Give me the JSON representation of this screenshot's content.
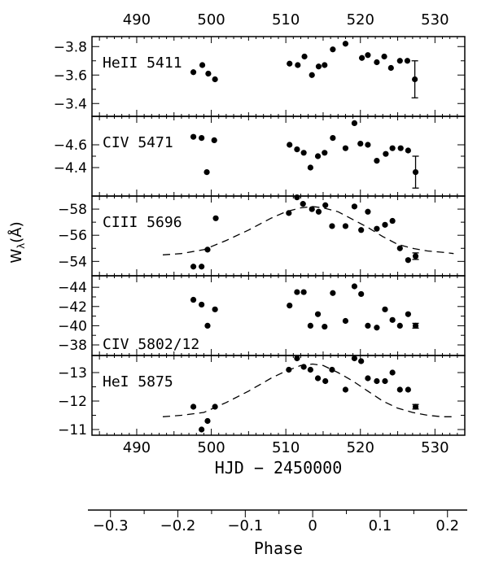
{
  "chart_data": {
    "type": "scatter",
    "xaxis": {
      "label": "HJD − 2450000",
      "range": [
        484,
        534
      ],
      "ticks": [
        490,
        500,
        510,
        520,
        530
      ],
      "tick_labels": [
        "490",
        "500",
        "510",
        "520",
        "530"
      ]
    },
    "phase_axis": {
      "label": "Phase",
      "ticks": [
        -0.3,
        -0.2,
        -0.1,
        0,
        0.1,
        0.2
      ],
      "tick_labels": [
        "−0.3",
        "−0.2",
        "−0.1",
        "0",
        "0.1",
        "0.2"
      ],
      "zero_hjd": 513.6,
      "hjd_per_phase": 90.4
    },
    "ylabel": "Wλ(Å)",
    "ylabel_main": "W",
    "ylabel_sub": "λ",
    "ylabel_unit": "(Å)",
    "panels": [
      {
        "label": "HeII 5411",
        "ylim": [
          -3.87,
          -3.31
        ],
        "inverted": true,
        "ticks": [
          -3.8,
          -3.6,
          -3.4
        ],
        "tick_labels": [
          "−3.8",
          "−3.6",
          "−3.4"
        ],
        "points": [
          [
            497.6,
            -3.62
          ],
          [
            498.8,
            -3.67
          ],
          [
            499.6,
            -3.61
          ],
          [
            500.5,
            -3.57
          ],
          [
            510.5,
            -3.68
          ],
          [
            511.6,
            -3.67
          ],
          [
            512.5,
            -3.73
          ],
          [
            513.5,
            -3.6
          ],
          [
            514.4,
            -3.66
          ],
          [
            515.2,
            -3.67
          ],
          [
            516.3,
            -3.78
          ],
          [
            518.0,
            -3.82
          ],
          [
            520.2,
            -3.72
          ],
          [
            521.0,
            -3.74
          ],
          [
            522.2,
            -3.69
          ],
          [
            523.2,
            -3.73
          ],
          [
            524.1,
            -3.65
          ],
          [
            525.3,
            -3.7
          ],
          [
            526.3,
            -3.7
          ],
          [
            527.3,
            -3.57
          ]
        ],
        "errorbar": {
          "x": 527.3,
          "y": -3.57,
          "err": 0.13
        },
        "curve": []
      },
      {
        "label": "CIV 5471",
        "ylim": [
          -4.85,
          -4.15
        ],
        "inverted": true,
        "ticks": [
          -4.6,
          -4.4
        ],
        "tick_labels": [
          "−4.6",
          "−4.4"
        ],
        "points": [
          [
            497.6,
            -4.67
          ],
          [
            498.7,
            -4.66
          ],
          [
            499.4,
            -4.36
          ],
          [
            500.4,
            -4.64
          ],
          [
            510.5,
            -4.6
          ],
          [
            511.5,
            -4.56
          ],
          [
            512.4,
            -4.53
          ],
          [
            513.3,
            -4.4
          ],
          [
            514.3,
            -4.5
          ],
          [
            515.2,
            -4.53
          ],
          [
            516.3,
            -4.66
          ],
          [
            518.0,
            -4.57
          ],
          [
            519.2,
            -4.79
          ],
          [
            520.0,
            -4.61
          ],
          [
            521.0,
            -4.6
          ],
          [
            522.2,
            -4.46
          ],
          [
            523.4,
            -4.52
          ],
          [
            524.3,
            -4.57
          ],
          [
            525.4,
            -4.57
          ],
          [
            526.4,
            -4.55
          ],
          [
            527.4,
            -4.36
          ]
        ],
        "errorbar": {
          "x": 527.4,
          "y": -4.36,
          "err": 0.14
        },
        "curve": []
      },
      {
        "label": "CIII 5696",
        "ylim": [
          -59.0,
          -52.9
        ],
        "inverted": true,
        "ticks": [
          -58,
          -56,
          -54
        ],
        "tick_labels": [
          "−58",
          "−56",
          "−54"
        ],
        "points": [
          [
            497.6,
            -53.6
          ],
          [
            498.7,
            -53.6
          ],
          [
            499.5,
            -54.9
          ],
          [
            500.6,
            -57.3
          ],
          [
            510.4,
            -57.7
          ],
          [
            511.5,
            -58.9
          ],
          [
            512.3,
            -58.4
          ],
          [
            513.5,
            -58.0
          ],
          [
            514.4,
            -57.8
          ],
          [
            515.3,
            -58.3
          ],
          [
            516.2,
            -56.7
          ],
          [
            518.0,
            -56.7
          ],
          [
            519.2,
            -58.2
          ],
          [
            520.1,
            -56.4
          ],
          [
            521.0,
            -57.8
          ],
          [
            522.2,
            -56.5
          ],
          [
            523.3,
            -56.8
          ],
          [
            524.3,
            -57.1
          ],
          [
            525.3,
            -55.0
          ],
          [
            526.4,
            -54.1
          ],
          [
            527.4,
            -54.4
          ]
        ],
        "errorbar": {
          "x": 527.4,
          "y": -54.4,
          "err": 0.25
        },
        "curve": [
          [
            493.5,
            -54.5
          ],
          [
            496,
            -54.6
          ],
          [
            499,
            -54.9
          ],
          [
            502,
            -55.6
          ],
          [
            505,
            -56.4
          ],
          [
            508,
            -57.3
          ],
          [
            510,
            -57.8
          ],
          [
            512,
            -58.1
          ],
          [
            513.6,
            -58.2
          ],
          [
            515,
            -58.1
          ],
          [
            517,
            -57.8
          ],
          [
            519,
            -57.2
          ],
          [
            521,
            -56.6
          ],
          [
            523,
            -55.9
          ],
          [
            525,
            -55.3
          ],
          [
            527,
            -55.0
          ],
          [
            529,
            -54.8
          ],
          [
            531,
            -54.7
          ],
          [
            532.5,
            -54.6
          ]
        ]
      },
      {
        "label": "CIV 5802/12",
        "ylim": [
          -45.2,
          -36.9
        ],
        "inverted": true,
        "ticks": [
          -44,
          -42,
          -40,
          -38
        ],
        "tick_labels": [
          "−44",
          "−42",
          "−40",
          "−38"
        ],
        "points": [
          [
            497.6,
            -42.7
          ],
          [
            498.7,
            -42.2
          ],
          [
            499.5,
            -40.0
          ],
          [
            500.5,
            -41.7
          ],
          [
            510.5,
            -42.1
          ],
          [
            511.5,
            -43.5
          ],
          [
            512.4,
            -43.5
          ],
          [
            513.3,
            -40.0
          ],
          [
            514.3,
            -41.2
          ],
          [
            515.2,
            -39.9
          ],
          [
            516.3,
            -43.4
          ],
          [
            518.0,
            -40.5
          ],
          [
            519.2,
            -44.1
          ],
          [
            520.1,
            -43.3
          ],
          [
            521.0,
            -40.0
          ],
          [
            522.2,
            -39.8
          ],
          [
            523.3,
            -41.7
          ],
          [
            524.3,
            -40.6
          ],
          [
            525.3,
            -40.0
          ],
          [
            526.4,
            -41.2
          ],
          [
            527.4,
            -40.0
          ]
        ],
        "errorbar": {
          "x": 527.4,
          "y": -40.0,
          "err": 0.25
        },
        "curve": []
      },
      {
        "label": "HeI 5875",
        "ylim": [
          -13.6,
          -10.8
        ],
        "inverted": true,
        "ticks": [
          -13,
          -12,
          -11
        ],
        "tick_labels": [
          "−13",
          "−12",
          "−11"
        ],
        "points": [
          [
            497.6,
            -11.8
          ],
          [
            498.7,
            -11.0
          ],
          [
            499.5,
            -11.3
          ],
          [
            500.5,
            -11.8
          ],
          [
            510.4,
            -13.1
          ],
          [
            511.5,
            -13.5
          ],
          [
            512.4,
            -13.2
          ],
          [
            513.3,
            -13.1
          ],
          [
            514.3,
            -12.8
          ],
          [
            515.3,
            -12.7
          ],
          [
            516.2,
            -13.1
          ],
          [
            518.0,
            -12.4
          ],
          [
            519.2,
            -13.5
          ],
          [
            520.1,
            -13.4
          ],
          [
            521.0,
            -12.8
          ],
          [
            522.2,
            -12.7
          ],
          [
            523.3,
            -12.7
          ],
          [
            524.3,
            -13.0
          ],
          [
            525.3,
            -12.4
          ],
          [
            526.4,
            -12.4
          ],
          [
            527.4,
            -11.8
          ]
        ],
        "errorbar": {
          "x": 527.4,
          "y": -11.8,
          "err": 0.08
        },
        "curve": [
          [
            493.5,
            -11.45
          ],
          [
            496,
            -11.5
          ],
          [
            499,
            -11.6
          ],
          [
            502,
            -11.95
          ],
          [
            505,
            -12.35
          ],
          [
            508,
            -12.8
          ],
          [
            510,
            -13.05
          ],
          [
            512,
            -13.25
          ],
          [
            513.6,
            -13.3
          ],
          [
            515,
            -13.25
          ],
          [
            517,
            -13.0
          ],
          [
            519,
            -12.7
          ],
          [
            521,
            -12.35
          ],
          [
            523,
            -12.0
          ],
          [
            525,
            -11.75
          ],
          [
            527,
            -11.6
          ],
          [
            529,
            -11.5
          ],
          [
            531,
            -11.45
          ],
          [
            532.5,
            -11.45
          ]
        ]
      }
    ]
  }
}
